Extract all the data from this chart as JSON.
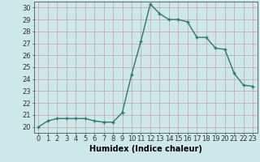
{
  "x": [
    0,
    1,
    2,
    3,
    4,
    5,
    6,
    7,
    8,
    9,
    10,
    11,
    12,
    13,
    14,
    15,
    16,
    17,
    18,
    19,
    20,
    21,
    22,
    23
  ],
  "y": [
    20.0,
    20.5,
    20.7,
    20.7,
    20.7,
    20.7,
    20.5,
    20.4,
    20.4,
    21.2,
    24.4,
    27.2,
    30.3,
    29.5,
    29.0,
    29.0,
    28.8,
    27.5,
    27.5,
    26.6,
    26.5,
    24.5,
    23.5,
    23.4
  ],
  "line_color": "#2d7a6e",
  "marker_color": "#2d7a6e",
  "bg_color": "#cce8e8",
  "grid_color": "#b8d8d8",
  "xlabel": "Humidex (Indice chaleur)",
  "xlim": [
    -0.5,
    23.5
  ],
  "ylim": [
    19.5,
    30.5
  ],
  "yticks": [
    20,
    21,
    22,
    23,
    24,
    25,
    26,
    27,
    28,
    29,
    30
  ],
  "xticks": [
    0,
    1,
    2,
    3,
    4,
    5,
    6,
    7,
    8,
    9,
    10,
    11,
    12,
    13,
    14,
    15,
    16,
    17,
    18,
    19,
    20,
    21,
    22,
    23
  ],
  "tick_fontsize": 6.0,
  "xlabel_fontsize": 7.0,
  "line_width": 1.0,
  "marker_size": 2.5
}
